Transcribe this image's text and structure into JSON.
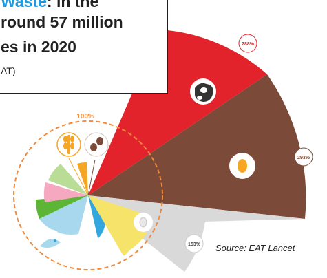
{
  "callout": {
    "line1_highlight": "Waste",
    "line1_rest": ": in the",
    "line2": "round 57 million",
    "line3": "es in 2020",
    "line4": "AT)"
  },
  "source": "Source: EAT Lancet",
  "circle_label": "100%",
  "chart_data": {
    "type": "polar-area",
    "reference_circle": "100%",
    "segments": [
      {
        "category_icon": "cow-icon",
        "label": "288%",
        "color": "#e3232b"
      },
      {
        "category_icon": "egg-icon",
        "label": "293%",
        "color": "#7b4a38"
      },
      {
        "category_icon": "poultry-icon",
        "label": "153%",
        "color": "#d9d9d9"
      },
      {
        "category_icon": "fish-icon",
        "color": "#f6e36a"
      },
      {
        "category_icon": "dairy-icon",
        "color": "#33a6de"
      },
      {
        "category_icon": "dairy-icon",
        "color": "#a8d8ee"
      },
      {
        "category_icon": "vegetable-icon",
        "color": "#5cb535"
      },
      {
        "category_icon": "fruit-icon",
        "color": "#f6a8c0"
      },
      {
        "category_icon": "legume-icon",
        "color": "#b9dc96"
      },
      {
        "category_icon": "grain-icon",
        "color": "#f5a623"
      }
    ]
  },
  "colors": {
    "accent": "#1e9be0",
    "circle_dash": "#f08a3c",
    "red": "#e3232b",
    "brown": "#7b4a38",
    "gray": "#d9d9d9"
  }
}
